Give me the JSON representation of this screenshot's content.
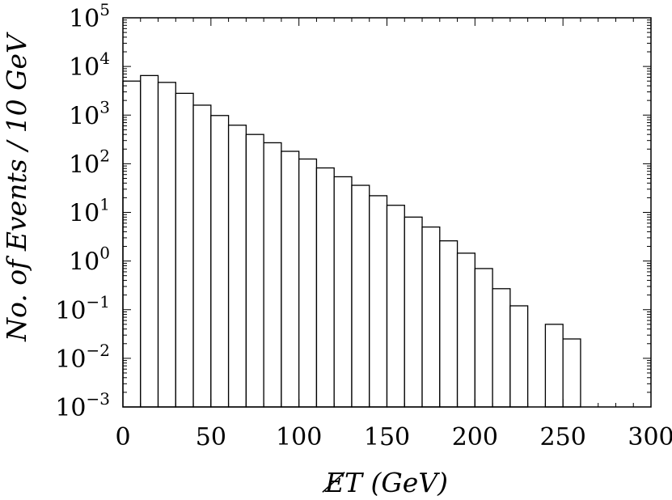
{
  "chart_data": {
    "type": "bar",
    "title": "",
    "xlabel": "E̸T (GeV)",
    "ylabel": "No. of Events / 10 GeV",
    "xlim": [
      0,
      300
    ],
    "ylim": [
      0.001,
      100000
    ],
    "yscale": "log",
    "grid": false,
    "legend": "none",
    "x_ticks": [
      "0",
      "50",
      "100",
      "150",
      "200",
      "250",
      "300"
    ],
    "y_ticks": [
      {
        "base": "10",
        "exp": "5"
      },
      {
        "base": "10",
        "exp": "4"
      },
      {
        "base": "10",
        "exp": "3"
      },
      {
        "base": "10",
        "exp": "2"
      },
      {
        "base": "10",
        "exp": "1"
      },
      {
        "base": "10",
        "exp": "0"
      },
      {
        "base": "10",
        "exp": "−1"
      },
      {
        "base": "10",
        "exp": "−2"
      },
      {
        "base": "10",
        "exp": "−3"
      }
    ],
    "bin_width": 10,
    "bins": [
      {
        "x0": 0,
        "x1": 10,
        "y": 5000
      },
      {
        "x0": 10,
        "x1": 20,
        "y": 6500
      },
      {
        "x0": 20,
        "x1": 30,
        "y": 4700
      },
      {
        "x0": 30,
        "x1": 40,
        "y": 2800
      },
      {
        "x0": 40,
        "x1": 50,
        "y": 1600
      },
      {
        "x0": 50,
        "x1": 60,
        "y": 980
      },
      {
        "x0": 60,
        "x1": 70,
        "y": 620
      },
      {
        "x0": 70,
        "x1": 80,
        "y": 400
      },
      {
        "x0": 80,
        "x1": 90,
        "y": 270
      },
      {
        "x0": 90,
        "x1": 100,
        "y": 180
      },
      {
        "x0": 100,
        "x1": 110,
        "y": 125
      },
      {
        "x0": 110,
        "x1": 120,
        "y": 82
      },
      {
        "x0": 120,
        "x1": 130,
        "y": 54
      },
      {
        "x0": 130,
        "x1": 140,
        "y": 36
      },
      {
        "x0": 140,
        "x1": 150,
        "y": 22
      },
      {
        "x0": 150,
        "x1": 160,
        "y": 14
      },
      {
        "x0": 160,
        "x1": 170,
        "y": 8
      },
      {
        "x0": 170,
        "x1": 180,
        "y": 5
      },
      {
        "x0": 180,
        "x1": 190,
        "y": 2.6
      },
      {
        "x0": 190,
        "x1": 200,
        "y": 1.45
      },
      {
        "x0": 200,
        "x1": 210,
        "y": 0.7
      },
      {
        "x0": 210,
        "x1": 220,
        "y": 0.27
      },
      {
        "x0": 220,
        "x1": 230,
        "y": 0.12
      },
      {
        "x0": 240,
        "x1": 250,
        "y": 0.05
      },
      {
        "x0": 250,
        "x1": 260,
        "y": 0.025
      }
    ],
    "colors": {
      "bar_fill": "#ffffff",
      "bar_stroke": "#000000",
      "axis": "#000000",
      "background": "#ffffff"
    }
  }
}
